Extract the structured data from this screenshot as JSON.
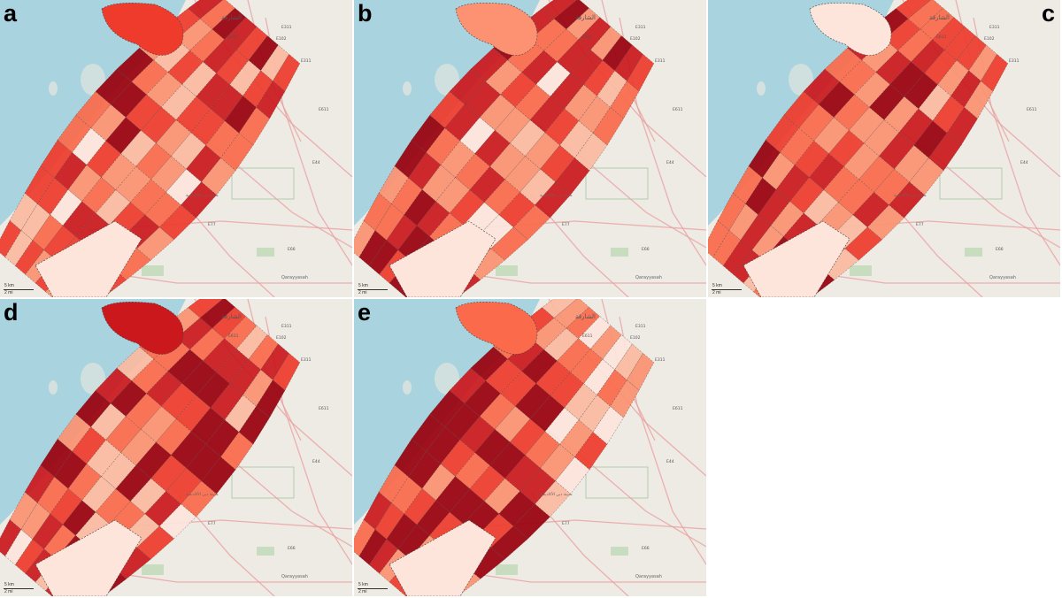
{
  "panels": [
    {
      "id": "a",
      "label": "a"
    },
    {
      "id": "b",
      "label": "b"
    },
    {
      "id": "c",
      "label": "c"
    },
    {
      "id": "d",
      "label": "d"
    },
    {
      "id": "e",
      "label": "e"
    }
  ],
  "map_labels": {
    "sharjah": "الشارقة",
    "roads": [
      "E311",
      "E102",
      "E611",
      "E44",
      "E77",
      "E66",
      "E611",
      "E311"
    ],
    "city": "Qarayyasah",
    "campus": "مدينة دبي الأكاديمية",
    "scale_top": "5 km",
    "scale_bottom": "2 mi"
  },
  "choropleth_palette": [
    "#fde5dc",
    "#fcbba1",
    "#fc9272",
    "#fb6a4a",
    "#ef3b2c",
    "#cb181d",
    "#99000d"
  ],
  "colors": {
    "sea": "#a9d3de",
    "land": "#eeeae4",
    "road": "#e8a0a0",
    "border": "#444444"
  }
}
